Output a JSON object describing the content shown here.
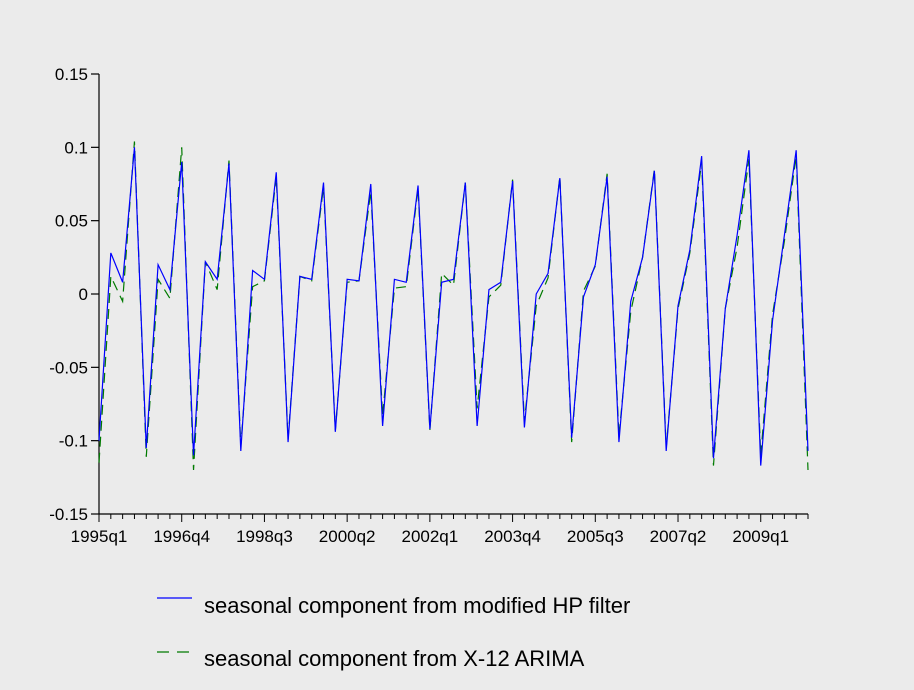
{
  "chart_data": {
    "type": "line",
    "title": "",
    "xlabel": "",
    "ylabel": "",
    "ylim": [
      -0.15,
      0.15
    ],
    "yticks": [
      -0.15,
      -0.1,
      -0.05,
      0,
      0.05,
      0.1,
      0.15
    ],
    "ytick_labels": [
      "-0.15",
      "-0.1",
      "-0.05",
      "0",
      "0.05",
      "0.1",
      "0.15"
    ],
    "xtick_labels": [
      "1995q1",
      "1996q4",
      "1998q3",
      "2000q2",
      "2002q1",
      "2003q4",
      "2005q3",
      "2007q2",
      "2009q1"
    ],
    "x_start": "1995q1",
    "x_end": "2010q4",
    "grid": false,
    "legend_position": "bottom",
    "background": "#ebebeb",
    "series": [
      {
        "name": "seasonal component from modified HP filter",
        "color": "#0000ff",
        "style": "solid",
        "values": [
          -0.1,
          0.028,
          0.008,
          0.1,
          -0.105,
          0.02,
          0.003,
          0.09,
          -0.11,
          0.022,
          0.01,
          0.089,
          -0.107,
          0.016,
          0.01,
          0.083,
          -0.101,
          0.012,
          0.01,
          0.076,
          -0.094,
          0.01,
          0.009,
          0.075,
          -0.09,
          0.01,
          0.008,
          0.074,
          -0.092,
          0.008,
          0.01,
          0.076,
          -0.09,
          0.003,
          0.008,
          0.077,
          -0.091,
          0.0,
          0.014,
          0.079,
          -0.098,
          -0.002,
          0.02,
          0.08,
          -0.101,
          -0.005,
          0.025,
          0.084,
          -0.107,
          -0.008,
          0.03,
          0.094,
          -0.112,
          -0.01,
          0.04,
          0.098,
          -0.117,
          -0.018,
          0.04,
          0.098,
          -0.107
        ]
      },
      {
        "name": "seasonal component from X-12 ARIMA",
        "color": "#007a00",
        "style": "dashed",
        "values": [
          -0.115,
          0.012,
          -0.005,
          0.104,
          -0.111,
          0.01,
          -0.003,
          0.1,
          -0.12,
          0.022,
          0.003,
          0.091,
          -0.104,
          0.005,
          0.009,
          0.08,
          -0.099,
          0.012,
          0.009,
          0.073,
          -0.093,
          0.008,
          0.009,
          0.07,
          -0.083,
          0.004,
          0.005,
          0.072,
          -0.093,
          0.014,
          0.006,
          0.076,
          -0.078,
          -0.002,
          0.006,
          0.078,
          -0.087,
          -0.008,
          0.011,
          0.08,
          -0.101,
          0.002,
          0.019,
          0.082,
          -0.097,
          -0.012,
          0.025,
          0.085,
          -0.105,
          -0.01,
          0.028,
          0.09,
          -0.117,
          -0.01,
          0.032,
          0.092,
          -0.11,
          -0.014,
          0.036,
          0.094,
          -0.12
        ]
      }
    ]
  }
}
